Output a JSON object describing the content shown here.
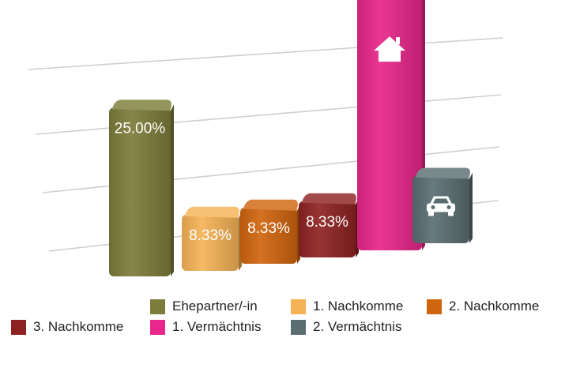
{
  "chart_data": {
    "type": "bar",
    "categories": [
      "Ehepartner/-in",
      "1. Nachkomme",
      "2. Nachkomme",
      "3. Nachkomme",
      "1. Vermächtnis",
      "2. Vermächtnis"
    ],
    "values": [
      25.0,
      8.33,
      8.33,
      8.33,
      38.0,
      10.0
    ],
    "data_labels": [
      "25.00%",
      "8.33%",
      "8.33%",
      "8.33%",
      "",
      ""
    ],
    "bar_icons": [
      "",
      "",
      "",
      "",
      "house-icon",
      "car-icon"
    ],
    "colors": [
      "#7d7c3a",
      "#f5b356",
      "#d0650f",
      "#8e2222",
      "#e8268b",
      "#5a6e72"
    ],
    "ylim": [
      0,
      40
    ],
    "grid": true,
    "legend_position": "bottom"
  },
  "legend": {
    "items": [
      {
        "label": "Ehepartner/-in",
        "color": "#7d7c3a"
      },
      {
        "label": "1. Nachkomme",
        "color": "#f5b356"
      },
      {
        "label": "2. Nachkomme",
        "color": "#d0650f"
      },
      {
        "label": "3. Nachkomme",
        "color": "#8e2222"
      },
      {
        "label": "1. Vermächtnis",
        "color": "#e8268b"
      },
      {
        "label": "2. Vermächtnis",
        "color": "#5a6e72"
      }
    ]
  }
}
